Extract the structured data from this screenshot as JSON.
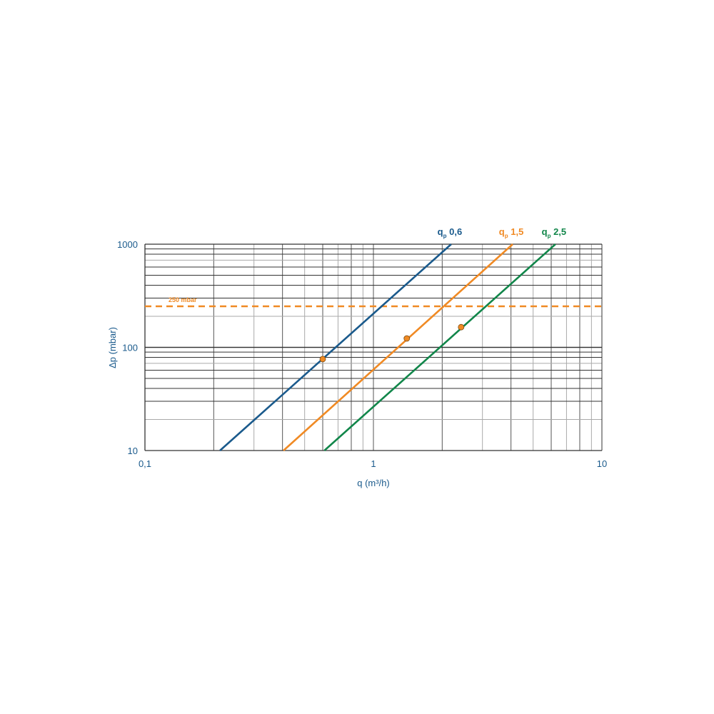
{
  "chart_data": {
    "type": "line",
    "title": "",
    "xlabel": "q (m³/h)",
    "ylabel": "Δp (mbar)",
    "xscale": "log",
    "yscale": "log",
    "xlim": [
      0.1,
      10
    ],
    "ylim": [
      10,
      1000
    ],
    "grid": true,
    "x_tick_labels": [
      {
        "value": 0.1,
        "label": "0,1"
      },
      {
        "value": 1,
        "label": "1"
      },
      {
        "value": 10,
        "label": "10"
      }
    ],
    "y_tick_labels": [
      {
        "value": 10,
        "label": "10"
      },
      {
        "value": 100,
        "label": "100"
      },
      {
        "value": 1000,
        "label": "1000"
      }
    ],
    "series": [
      {
        "name": "0,6",
        "name_prefix": "q",
        "name_sub": "p",
        "color": "#1a5a8c",
        "x": [
          0.213,
          2.19
        ],
        "y": [
          10,
          1000
        ],
        "marker": {
          "x": 0.6,
          "y": 77
        }
      },
      {
        "name": "1,5",
        "name_prefix": "q",
        "name_sub": "p",
        "color": "#f08a24",
        "x": [
          0.404,
          4.07
        ],
        "y": [
          10,
          1000
        ],
        "marker": {
          "x": 1.4,
          "y": 122
        }
      },
      {
        "name": "2,5",
        "name_prefix": "q",
        "name_sub": "p",
        "color": "#11864a",
        "x": [
          0.61,
          6.26
        ],
        "y": [
          10,
          1000
        ],
        "marker": {
          "x": 2.42,
          "y": 157
        }
      }
    ],
    "reference_line": {
      "y": 250,
      "label": "250 mbar",
      "color": "#f08a24",
      "style": "dashed"
    },
    "marker_color": "#f08a24",
    "axis_text_color": "#1a5a8c"
  }
}
